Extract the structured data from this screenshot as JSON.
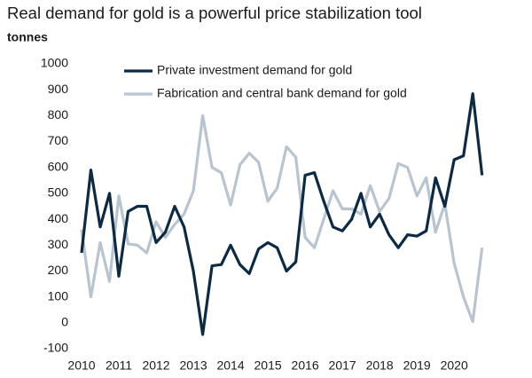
{
  "chart_data": {
    "type": "line",
    "title": "Real demand for gold is a powerful price stabilization tool",
    "y_label": "tonnes",
    "x": [
      2010,
      2010.25,
      2010.5,
      2010.75,
      2011,
      2011.25,
      2011.5,
      2011.75,
      2012,
      2012.25,
      2012.5,
      2012.75,
      2013,
      2013.25,
      2013.5,
      2013.75,
      2014,
      2014.25,
      2014.5,
      2014.75,
      2015,
      2015.25,
      2015.5,
      2015.75,
      2016,
      2016.25,
      2016.5,
      2016.75,
      2017,
      2017.25,
      2017.5,
      2017.75,
      2018,
      2018.25,
      2018.5,
      2018.75,
      2019,
      2019.25,
      2019.5,
      2019.75,
      2020,
      2020.25,
      2020.5,
      2020.75
    ],
    "series": [
      {
        "name": "Private investment demand for gold",
        "color": "#0d2a44",
        "values": [
          270,
          590,
          370,
          500,
          180,
          430,
          450,
          450,
          310,
          350,
          450,
          370,
          200,
          -45,
          220,
          225,
          300,
          225,
          190,
          285,
          310,
          290,
          200,
          235,
          570,
          580,
          470,
          370,
          355,
          400,
          500,
          370,
          420,
          340,
          290,
          340,
          335,
          355,
          560,
          450,
          630,
          645,
          885,
          570
        ]
      },
      {
        "name": "Fabrication and central bank demand for gold",
        "color": "#b8c4cf",
        "values": [
          360,
          100,
          310,
          160,
          490,
          305,
          300,
          270,
          390,
          330,
          380,
          420,
          510,
          800,
          600,
          580,
          455,
          610,
          655,
          620,
          470,
          520,
          680,
          640,
          330,
          290,
          400,
          510,
          440,
          440,
          420,
          530,
          430,
          480,
          615,
          600,
          490,
          560,
          350,
          460,
          230,
          100,
          5,
          290
        ]
      }
    ],
    "xlim": [
      2010,
      2020.9
    ],
    "xticks": [
      2010,
      2011,
      2012,
      2013,
      2014,
      2015,
      2016,
      2017,
      2018,
      2019,
      2020
    ],
    "ylim": [
      -100,
      1000
    ],
    "yticks": [
      -100,
      0,
      100,
      200,
      300,
      400,
      500,
      600,
      700,
      800,
      900,
      1000
    ],
    "grid": false
  }
}
